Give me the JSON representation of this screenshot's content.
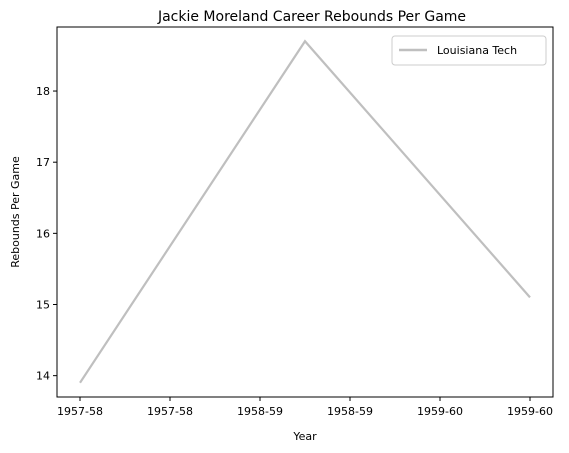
{
  "chart_data": {
    "type": "line",
    "title": "Jackie Moreland Career Rebounds Per Game",
    "xlabel": "Year",
    "ylabel": "Rebounds Per Game",
    "x_tick_labels": [
      "1957-58",
      "1957-58",
      "1958-59",
      "1958-59",
      "1959-60",
      "1959-60"
    ],
    "y_ticks": [
      14,
      15,
      16,
      17,
      18
    ],
    "ylim": [
      13.7,
      18.9
    ],
    "categories": [
      "1957-58",
      "1958-59",
      "1959-60"
    ],
    "series": [
      {
        "name": "Louisiana Tech",
        "values": [
          13.9,
          18.7,
          15.1
        ],
        "color": "#bfbfbf"
      }
    ],
    "grid": false,
    "legend": "top-right"
  }
}
